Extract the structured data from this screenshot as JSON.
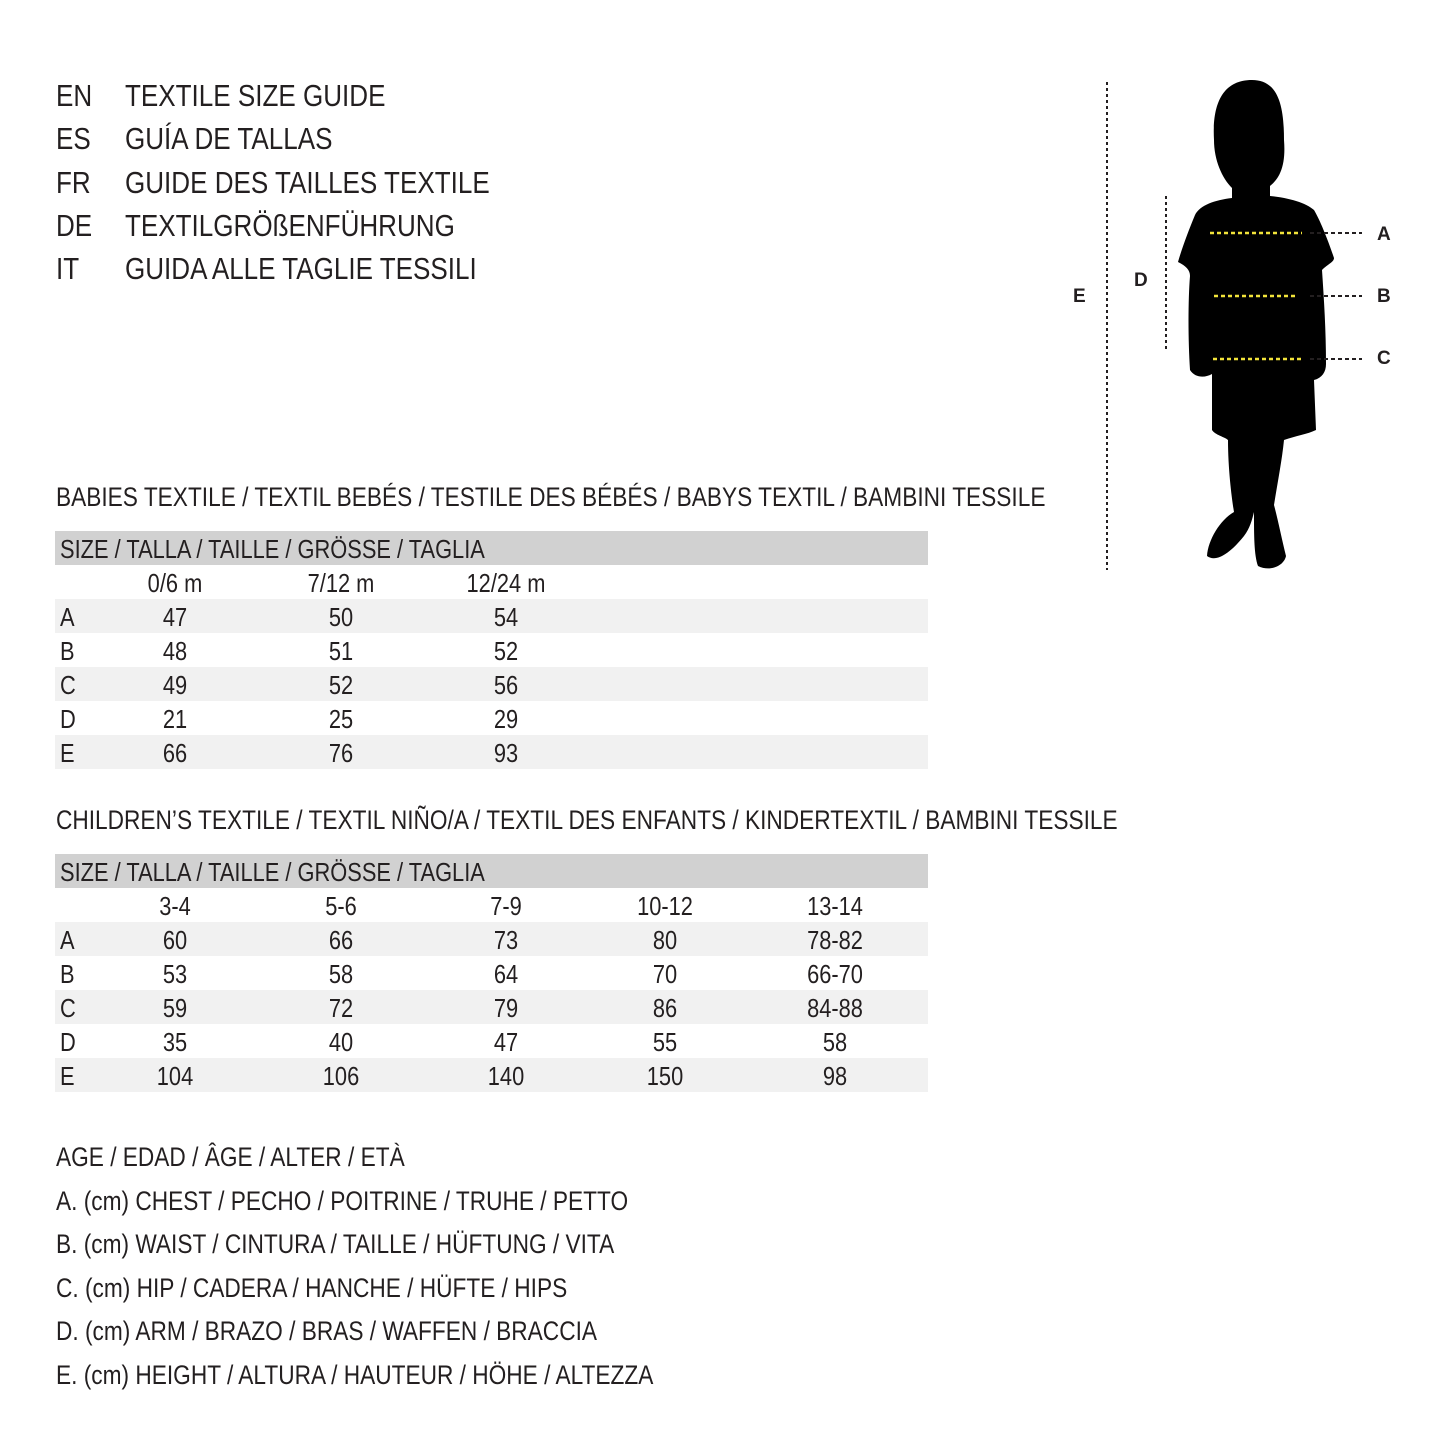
{
  "titles": [
    {
      "lang": "EN",
      "text": "TEXTILE SIZE GUIDE"
    },
    {
      "lang": "ES",
      "text": "GUÍA DE TALLAS"
    },
    {
      "lang": "FR",
      "text": "GUIDE DES TAILLES TEXTILE"
    },
    {
      "lang": "DE",
      "text": "TEXTILGRÖßENFÜHRUNG"
    },
    {
      "lang": "IT",
      "text": "GUIDA ALLE TAGLIE TESSILI"
    }
  ],
  "figure": {
    "labels": {
      "a": "A",
      "b": "B",
      "c": "C",
      "d": "D",
      "e": "E"
    },
    "guide_color": "#f2e33a"
  },
  "babies": {
    "heading": "BABIES TEXTILE / TEXTIL BEBÉS / TESTILE DES BÉBÉS / BABYS TEXTIL / BAMBINI TESSILE",
    "size_label": "SIZE / TALLA / TAILLE / GRÖSSE / TAGLIA",
    "columns": [
      "0/6 m",
      "7/12 m",
      "12/24 m"
    ],
    "rows": [
      {
        "label": "A",
        "values": [
          "47",
          "50",
          "54"
        ]
      },
      {
        "label": "B",
        "values": [
          "48",
          "51",
          "52"
        ]
      },
      {
        "label": "C",
        "values": [
          "49",
          "52",
          "56"
        ]
      },
      {
        "label": "D",
        "values": [
          "21",
          "25",
          "29"
        ]
      },
      {
        "label": "E",
        "values": [
          "66",
          "76",
          "93"
        ]
      }
    ]
  },
  "children": {
    "heading": "CHILDREN’S TEXTILE / TEXTIL NIÑO/A / TEXTIL DES ENFANTS / KINDERTEXTIL / BAMBINI TESSILE",
    "size_label": "SIZE / TALLA / TAILLE / GRÖSSE / TAGLIA",
    "columns": [
      "3-4",
      "5-6",
      "7-9",
      "10-12",
      "13-14"
    ],
    "rows": [
      {
        "label": "A",
        "values": [
          "60",
          "66",
          "73",
          "80",
          "78-82"
        ]
      },
      {
        "label": "B",
        "values": [
          "53",
          "58",
          "64",
          "70",
          "66-70"
        ]
      },
      {
        "label": "C",
        "values": [
          "59",
          "72",
          "79",
          "86",
          "84-88"
        ]
      },
      {
        "label": "D",
        "values": [
          "35",
          "40",
          "47",
          "55",
          "58"
        ]
      },
      {
        "label": "E",
        "values": [
          "104",
          "106",
          "140",
          "150",
          "98"
        ]
      }
    ]
  },
  "legend": [
    "AGE / EDAD / ÂGE / ALTER / ETÀ",
    "A. (cm) CHEST / PECHO / POITRINE / TRUHE / PETTO",
    "B. (cm) WAIST / CINTURA / TAILLE / HÜFTUNG / VITA",
    "C. (cm) HIP / CADERA / HANCHE / HÜFTE / HIPS",
    "D. (cm) ARM / BRAZO / BRAS / WAFFEN / BRACCIA",
    "E. (cm) HEIGHT / ALTURA / HAUTEUR / HÖHE / ALTEZZA"
  ]
}
